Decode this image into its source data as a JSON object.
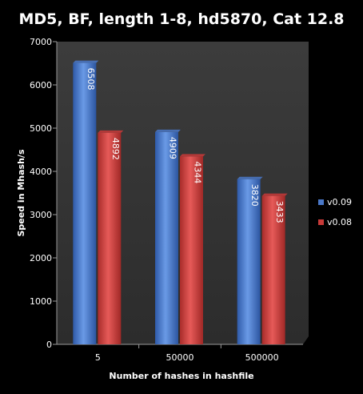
{
  "chart_data": {
    "type": "bar",
    "title": "MD5, BF, length 1-8, hd5870, Cat 12.8",
    "xlabel": "Number of hashes in hashfile",
    "ylabel": "Speed in Mhash/s",
    "categories": [
      "5",
      "50000",
      "500000"
    ],
    "ylim": [
      0,
      7000
    ],
    "yticks": [
      "0",
      "1000",
      "2000",
      "3000",
      "4000",
      "5000",
      "6000",
      "7000"
    ],
    "grid": false,
    "legend_position": "right",
    "series": [
      {
        "name": "v0.09",
        "values": [
          6508,
          4909,
          3820
        ],
        "labels": [
          "6508",
          "4909",
          "3820"
        ],
        "color": "#4a78c8"
      },
      {
        "name": "v0.08",
        "values": [
          4892,
          4344,
          3433
        ],
        "labels": [
          "4892",
          "4344",
          "3433"
        ],
        "color": "#c83a38"
      }
    ],
    "plot_area_color": "#3a3a3a",
    "background_color": "#000000"
  }
}
